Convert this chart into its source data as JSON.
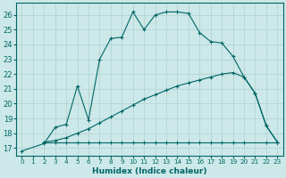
{
  "xlabel": "Humidex (Indice chaleur)",
  "bg_color": "#cce8e8",
  "grid_color": "#b0d0d0",
  "line_color": "#006666",
  "xlim": [
    -0.5,
    23.5
  ],
  "ylim": [
    16.5,
    26.8
  ],
  "yticks": [
    17,
    18,
    19,
    20,
    21,
    22,
    23,
    24,
    25,
    26
  ],
  "xticks": [
    0,
    1,
    2,
    3,
    4,
    5,
    6,
    7,
    8,
    9,
    10,
    11,
    12,
    13,
    14,
    15,
    16,
    17,
    18,
    19,
    20,
    21,
    22,
    23
  ],
  "line1_x": [
    0,
    2,
    3,
    4,
    5,
    6,
    7,
    8,
    9,
    10,
    11,
    12,
    13,
    14,
    15,
    16,
    17,
    18,
    19,
    20,
    21,
    22,
    23
  ],
  "line1_y": [
    16.8,
    17.3,
    18.4,
    18.6,
    21.2,
    18.9,
    23.0,
    24.4,
    24.5,
    26.2,
    25.0,
    26.0,
    26.2,
    26.2,
    26.1,
    24.8,
    24.2,
    24.1,
    23.2,
    21.8,
    20.7,
    18.5,
    17.4
  ],
  "line2_x": [
    2,
    3,
    4,
    5,
    6,
    7,
    8,
    9,
    10,
    11,
    12,
    13,
    14,
    15,
    16,
    17,
    18,
    19,
    20,
    22,
    23
  ],
  "line2_y": [
    17.4,
    17.4,
    17.4,
    17.4,
    17.4,
    17.4,
    17.4,
    17.4,
    17.4,
    17.4,
    17.4,
    17.4,
    17.4,
    17.4,
    17.4,
    17.4,
    17.4,
    17.4,
    17.4,
    17.4,
    17.4
  ],
  "line3_x": [
    2,
    3,
    4,
    5,
    6,
    7,
    8,
    9,
    10,
    11,
    12,
    13,
    14,
    15,
    16,
    17,
    18,
    19,
    20,
    21,
    22,
    23
  ],
  "line3_y": [
    17.4,
    17.5,
    17.7,
    18.0,
    18.3,
    18.7,
    19.1,
    19.5,
    19.9,
    20.3,
    20.6,
    20.9,
    21.2,
    21.4,
    21.6,
    21.8,
    22.0,
    22.1,
    21.8,
    20.7,
    18.5,
    17.4
  ]
}
